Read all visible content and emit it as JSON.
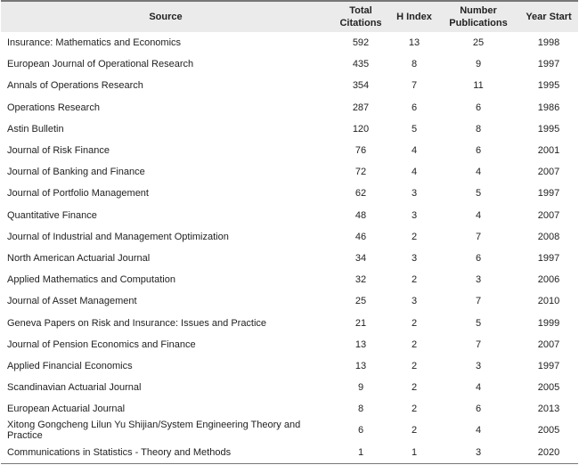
{
  "headers": {
    "source": "Source",
    "total": "Total Citations",
    "h": "H Index",
    "pubs": "Number Publications",
    "year": "Year Start"
  },
  "rows": [
    [
      "Insurance: Mathematics and Economics",
      "592",
      "13",
      "25",
      "1998"
    ],
    [
      "European Journal of Operational Research",
      "435",
      "8",
      "9",
      "1997"
    ],
    [
      "Annals of Operations Research",
      "354",
      "7",
      "11",
      "1995"
    ],
    [
      "Operations Research",
      "287",
      "6",
      "6",
      "1986"
    ],
    [
      "Astin Bulletin",
      "120",
      "5",
      "8",
      "1995"
    ],
    [
      "Journal of Risk Finance",
      "76",
      "4",
      "6",
      "2001"
    ],
    [
      "Journal of Banking and Finance",
      "72",
      "4",
      "4",
      "2007"
    ],
    [
      "Journal of Portfolio Management",
      "62",
      "3",
      "5",
      "1997"
    ],
    [
      "Quantitative Finance",
      "48",
      "3",
      "4",
      "2007"
    ],
    [
      "Journal of Industrial and Management Optimization",
      "46",
      "2",
      "7",
      "2008"
    ],
    [
      "North American Actuarial Journal",
      "34",
      "3",
      "6",
      "1997"
    ],
    [
      "Applied Mathematics and Computation",
      "32",
      "2",
      "3",
      "2006"
    ],
    [
      "Journal of Asset Management",
      "25",
      "3",
      "7",
      "2010"
    ],
    [
      "Geneva Papers on Risk and Insurance: Issues and Practice",
      "21",
      "2",
      "5",
      "1999"
    ],
    [
      "Journal of Pension Economics and Finance",
      "13",
      "2",
      "7",
      "2007"
    ],
    [
      "Applied Financial Economics",
      "13",
      "2",
      "3",
      "1997"
    ],
    [
      "Scandinavian Actuarial Journal",
      "9",
      "2",
      "4",
      "2005"
    ],
    [
      "European Actuarial Journal",
      "8",
      "2",
      "6",
      "2013"
    ],
    [
      "Xitong Gongcheng Lilun Yu Shijian/System Engineering Theory and Practice",
      "6",
      "2",
      "4",
      "2005"
    ],
    [
      "Communications in Statistics - Theory and Methods",
      "1",
      "1",
      "3",
      "2020"
    ]
  ]
}
